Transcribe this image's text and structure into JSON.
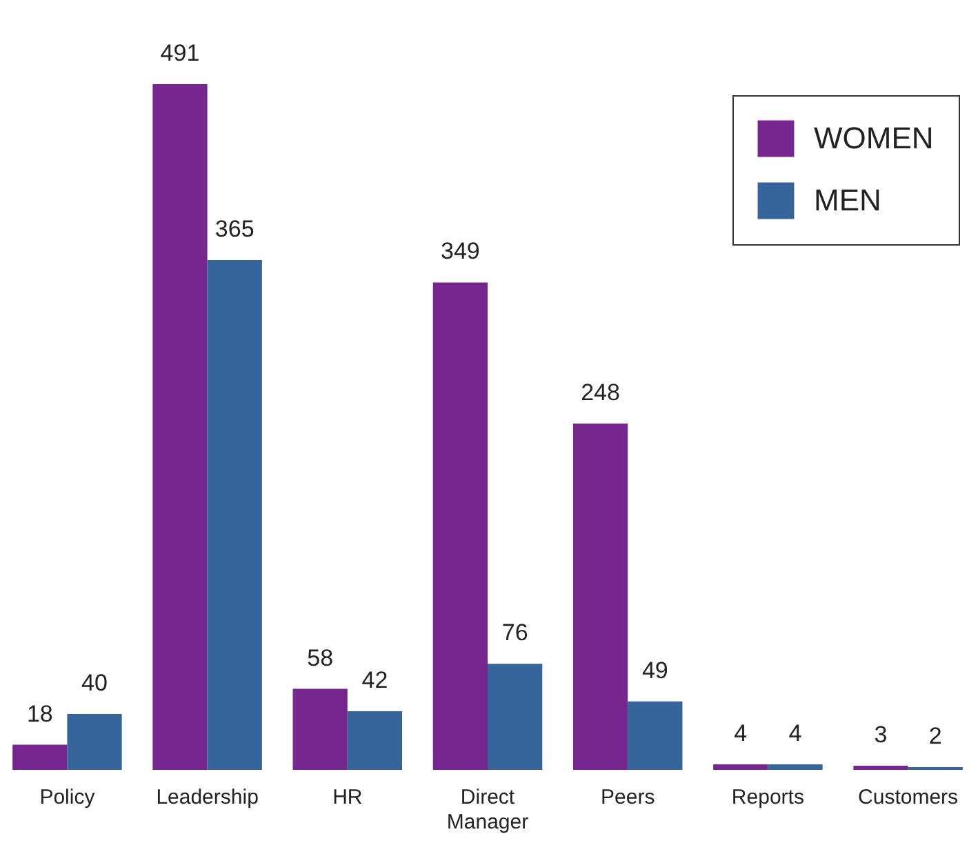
{
  "chart_data": {
    "type": "bar",
    "categories": [
      "Policy",
      "Leadership",
      "HR",
      "Direct Manager",
      "Peers",
      "Reports",
      "Customers"
    ],
    "series": [
      {
        "name": "WOMEN",
        "color": "#76278f",
        "values": [
          18,
          491,
          58,
          349,
          248,
          4,
          3
        ]
      },
      {
        "name": "MEN",
        "color": "#35659a",
        "values": [
          40,
          365,
          42,
          76,
          49,
          4,
          2
        ]
      }
    ],
    "data_labels": true,
    "legend": "top right"
  }
}
